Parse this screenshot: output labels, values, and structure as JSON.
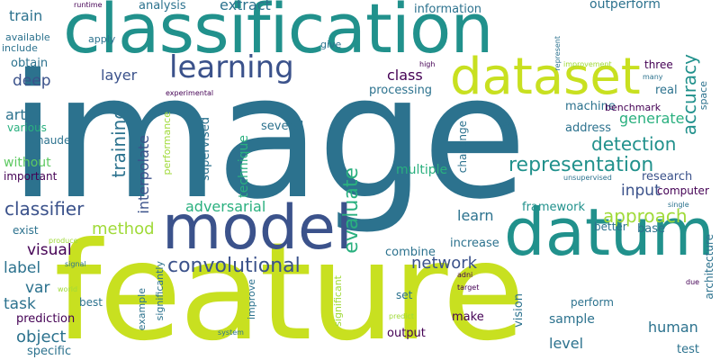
{
  "word_cloud": {
    "colors": {
      "dark_purple": "#440154",
      "indigo": "#3b528b",
      "steel_blue": "#31688e",
      "teal_blue": "#2c728e",
      "teal": "#21918c",
      "green": "#2ab07f",
      "light_green": "#5ec962",
      "lime": "#a0da39",
      "yellow_green": "#c8e020"
    },
    "words": {
      "image": "image",
      "feature": "feature",
      "classification": "classification",
      "datum": "datum",
      "model": "model",
      "dataset": "dataset",
      "learning": "learning",
      "representation": "representation",
      "convolutional": "convolutional",
      "accuracy": "accuracy",
      "classifier": "classifier",
      "approach": "approach",
      "detection": "detection",
      "evaluate": "evaluate",
      "network": "network",
      "training": "training",
      "generate": "generate",
      "method": "method",
      "input": "input",
      "adversarial": "adversarial",
      "interpolate": "interpolate",
      "object": "object",
      "visual": "visual",
      "label": "label",
      "task": "task",
      "learn": "learn",
      "level": "level",
      "human": "human",
      "class": "class",
      "deep": "deep",
      "layer": "layer",
      "art": "art",
      "var": "var",
      "extract": "extract",
      "train": "train",
      "outperform": "outperform",
      "framework": "framework",
      "multiple": "multiple",
      "technique": "technique",
      "supervised": "supervised",
      "machine": "machine",
      "real": "real",
      "research": "research",
      "computer": "computer",
      "benchmark": "benchmark",
      "processing": "processing",
      "information": "information",
      "analysis": "analysis",
      "several": "several",
      "address": "address",
      "challenge": "challenge",
      "increase": "increase",
      "combine": "combine",
      "sample": "sample",
      "vision": "vision",
      "output": "output",
      "make": "make",
      "test": "test",
      "base": "base",
      "better": "better",
      "prediction": "prediction",
      "specific": "specific",
      "various": "various",
      "schauder": "schauder",
      "without": "without",
      "important": "important",
      "exist": "exist",
      "obtain": "obtain",
      "available": "available",
      "include": "include",
      "apply": "apply",
      "give": "give",
      "three": "three",
      "space": "space",
      "architecture": "architecture",
      "performance": "performance",
      "significantly": "significantly",
      "significant": "significant",
      "improve": "improve",
      "example": "example",
      "best": "best",
      "perform": "perform",
      "set": "set",
      "runtime": "runtime",
      "represent": "represent",
      "experimental": "experimental",
      "high": "high",
      "improvement": "improvement",
      "many": "many",
      "low": "low",
      "unsupervised": "unsupervised",
      "single": "single",
      "produce": "produce",
      "signal": "signal",
      "world": "world",
      "adni": "adni",
      "target": "target",
      "due": "due",
      "predict": "predict",
      "system": "system"
    }
  }
}
